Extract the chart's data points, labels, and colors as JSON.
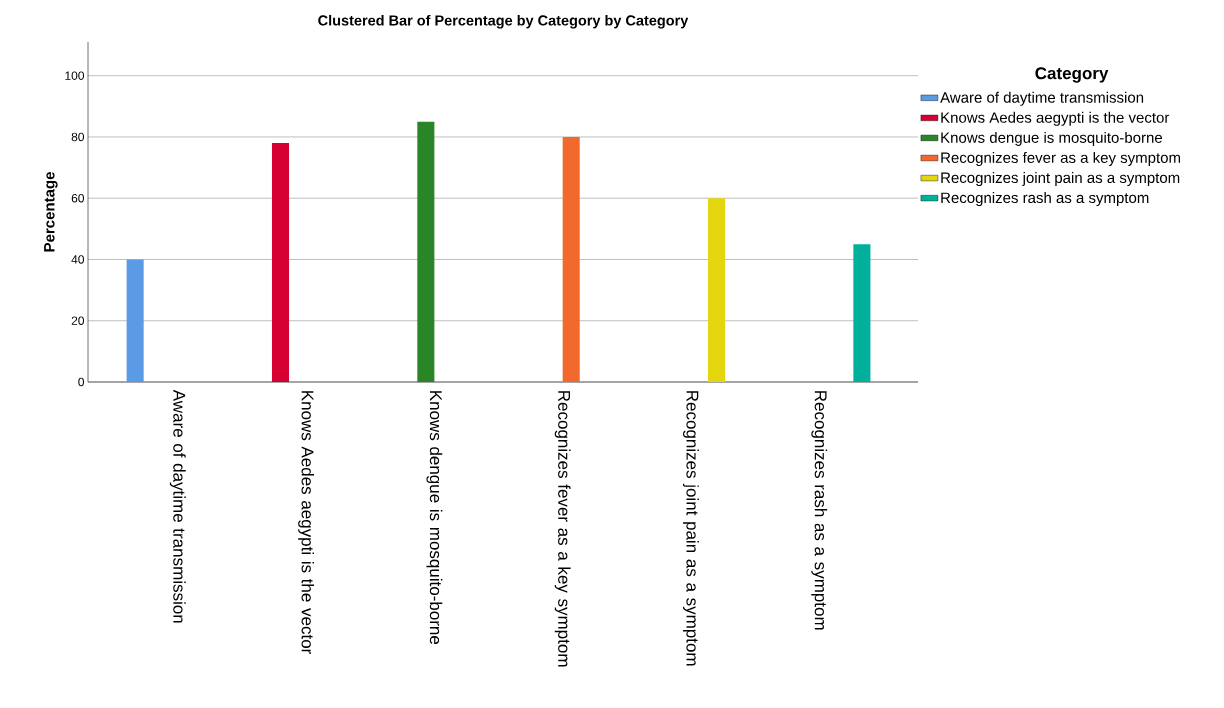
{
  "chart_data": {
    "type": "bar",
    "title": "Clustered Bar of Percentage by Category by Category",
    "ylabel": "Percentage",
    "legend_title": "Category",
    "categories": [
      "Aware of daytime transmission",
      "Knows Aedes aegypti is the vector",
      "Knows dengue is mosquito-borne",
      "Recognizes fever as a key symptom",
      "Recognizes joint pain as a symptom",
      "Recognizes rash as a symptom"
    ],
    "series": [
      {
        "name": "Aware of daytime transmission",
        "color": "#5b9be6",
        "values": [
          40,
          null,
          null,
          null,
          null,
          null
        ]
      },
      {
        "name": "Knows Aedes aegypti is the vector",
        "color": "#d60032",
        "values": [
          null,
          78,
          null,
          null,
          null,
          null
        ]
      },
      {
        "name": "Knows dengue is mosquito-borne",
        "color": "#2a8527",
        "values": [
          null,
          null,
          85,
          null,
          null,
          null
        ]
      },
      {
        "name": "Recognizes fever as a key symptom",
        "color": "#f2692d",
        "values": [
          null,
          null,
          null,
          80,
          null,
          null
        ]
      },
      {
        "name": "Recognizes joint pain as a symptom",
        "color": "#e3d60f",
        "values": [
          null,
          null,
          null,
          null,
          60,
          null
        ]
      },
      {
        "name": "Recognizes rash as a symptom",
        "color": "#00b09b",
        "values": [
          null,
          null,
          null,
          null,
          null,
          45
        ]
      }
    ],
    "ylim": [
      0,
      111
    ],
    "yticks": [
      0,
      20,
      40,
      60,
      80,
      100
    ],
    "grid": "y",
    "legend": "right"
  }
}
